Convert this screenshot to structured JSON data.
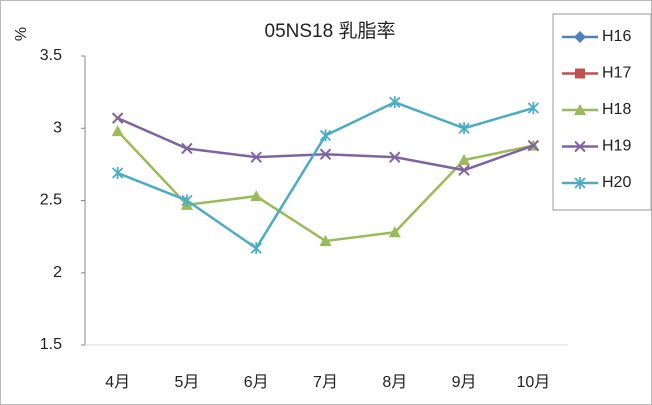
{
  "chart_data": {
    "type": "line",
    "title": "05NS18 乳脂率",
    "y_label": "%",
    "categories": [
      "4月",
      "5月",
      "6月",
      "7月",
      "8月",
      "9月",
      "10月"
    ],
    "series": [
      {
        "name": "H16",
        "color": "#4f81bd",
        "marker": "diamond",
        "values": [
          null,
          null,
          null,
          null,
          null,
          null,
          null
        ]
      },
      {
        "name": "H17",
        "color": "#c0504d",
        "marker": "square",
        "values": [
          null,
          null,
          null,
          null,
          null,
          null,
          null
        ]
      },
      {
        "name": "H18",
        "color": "#9bbb59",
        "marker": "triangle",
        "values": [
          2.98,
          2.47,
          2.53,
          2.22,
          2.28,
          2.78,
          2.88
        ]
      },
      {
        "name": "H19",
        "color": "#8064a2",
        "marker": "x",
        "values": [
          3.07,
          2.86,
          2.8,
          2.82,
          2.8,
          2.71,
          2.88
        ]
      },
      {
        "name": "H20",
        "color": "#4bacc6",
        "marker": "star",
        "values": [
          2.69,
          2.5,
          2.17,
          2.95,
          3.18,
          3.0,
          3.14
        ]
      }
    ],
    "ylim": [
      1.5,
      3.5
    ],
    "yticks": [
      1.5,
      2,
      2.5,
      3,
      3.5
    ],
    "grid": false,
    "legend": "right"
  }
}
